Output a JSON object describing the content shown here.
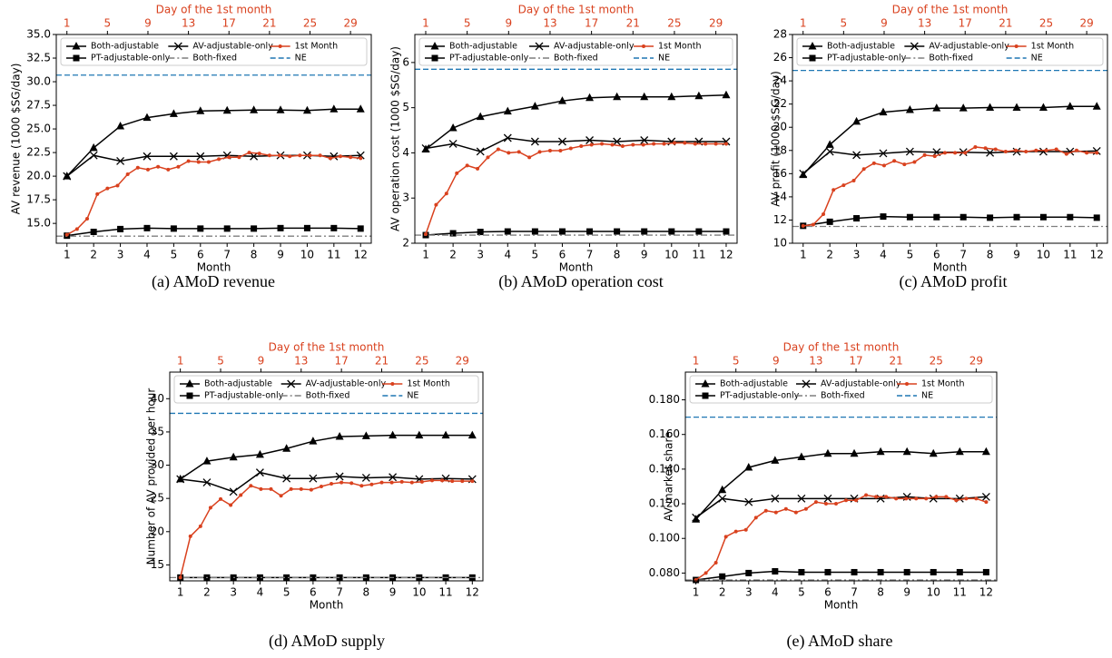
{
  "chart_data": [
    {
      "type": "line",
      "caption": "(a) AMoD revenue",
      "xlabel": "Month",
      "ylabel": "AV revenue (1000 $SG/day)",
      "x2label": "Day of the 1st month",
      "x2color": "#d9411e",
      "x": [
        1,
        2,
        3,
        4,
        5,
        6,
        7,
        8,
        9,
        10,
        11,
        12
      ],
      "xlim": [
        0.6,
        12.4
      ],
      "xticks": [
        1,
        2,
        3,
        4,
        5,
        6,
        7,
        8,
        9,
        10,
        11,
        12
      ],
      "x2lim": [
        -0.05,
        31.05
      ],
      "x2ticks": [
        1,
        5,
        9,
        13,
        17,
        21,
        25,
        29
      ],
      "ylim": [
        12.9,
        35
      ],
      "yticks": [
        {
          "value": 15,
          "label": "15.0"
        },
        {
          "value": 17.5,
          "label": "17.5"
        },
        {
          "value": 20,
          "label": "20.0"
        },
        {
          "value": 22.5,
          "label": "22.5"
        },
        {
          "value": 25,
          "label": "25.0"
        },
        {
          "value": 27.5,
          "label": "27.5"
        },
        {
          "value": 30,
          "label": "30.0"
        },
        {
          "value": 32.5,
          "label": "32.5"
        },
        {
          "value": 35,
          "label": "35.0"
        }
      ],
      "series": [
        {
          "name": "Both-adjustable",
          "color": "#000000",
          "marker": "triangle",
          "values": [
            20.0,
            23.0,
            25.3,
            26.2,
            26.6,
            26.9,
            26.95,
            27.0,
            27.0,
            26.95,
            27.1,
            27.1
          ]
        },
        {
          "name": "PT-adjustable-only",
          "color": "#000000",
          "marker": "square",
          "values": [
            13.7,
            14.1,
            14.4,
            14.5,
            14.45,
            14.45,
            14.45,
            14.45,
            14.5,
            14.5,
            14.5,
            14.45
          ]
        },
        {
          "name": "AV-adjustable-only",
          "color": "#000000",
          "marker": "x",
          "values": [
            20.0,
            22.2,
            21.6,
            22.1,
            22.1,
            22.1,
            22.2,
            22.1,
            22.2,
            22.2,
            22.1,
            22.2
          ]
        },
        {
          "name": "Both-fixed",
          "color": "#7f7f7f",
          "style": "dashdot",
          "value": 13.65
        },
        {
          "name": "1st Month",
          "color": "#d9411e",
          "marker": "dot",
          "axis": "x2",
          "x": [
            1,
            2,
            3,
            4,
            5,
            6,
            7,
            8,
            9,
            10,
            11,
            12,
            13,
            14,
            15,
            16,
            17,
            18,
            19,
            20,
            21,
            22,
            23,
            24,
            25,
            26,
            27,
            28,
            29,
            30
          ],
          "values": [
            13.8,
            14.4,
            15.5,
            18.1,
            18.7,
            19.0,
            20.2,
            20.9,
            20.7,
            21.0,
            20.7,
            21.0,
            21.6,
            21.5,
            21.5,
            21.8,
            22.0,
            22.0,
            22.5,
            22.4,
            22.2,
            22.2,
            22.1,
            22.2,
            22.2,
            22.2,
            21.9,
            22.1,
            22.0,
            21.9
          ]
        },
        {
          "name": "NE",
          "color": "#1f77b4",
          "style": "dashed",
          "value": 30.7
        }
      ]
    },
    {
      "type": "line",
      "caption": "(b) AMoD operation cost",
      "xlabel": "Month",
      "ylabel": "AV operation cost (1000 $SG/day)",
      "x2label": "Day of the 1st month",
      "x2color": "#d9411e",
      "x": [
        1,
        2,
        3,
        4,
        5,
        6,
        7,
        8,
        9,
        10,
        11,
        12
      ],
      "xlim": [
        0.6,
        12.4
      ],
      "xticks": [
        1,
        2,
        3,
        4,
        5,
        6,
        7,
        8,
        9,
        10,
        11,
        12
      ],
      "x2lim": [
        -0.05,
        31.05
      ],
      "x2ticks": [
        1,
        5,
        9,
        13,
        17,
        21,
        25,
        29
      ],
      "ylim": [
        2,
        6.62
      ],
      "yticks": [
        2,
        3,
        4,
        5,
        6
      ],
      "series": [
        {
          "name": "Both-adjustable",
          "color": "#000000",
          "marker": "triangle",
          "values": [
            4.08,
            4.55,
            4.8,
            4.92,
            5.03,
            5.15,
            5.22,
            5.24,
            5.24,
            5.24,
            5.26,
            5.28
          ]
        },
        {
          "name": "PT-adjustable-only",
          "color": "#000000",
          "marker": "square",
          "values": [
            2.18,
            2.22,
            2.25,
            2.26,
            2.26,
            2.26,
            2.26,
            2.26,
            2.26,
            2.26,
            2.26,
            2.26
          ]
        },
        {
          "name": "AV-adjustable-only",
          "color": "#000000",
          "marker": "x",
          "values": [
            4.1,
            4.2,
            4.03,
            4.33,
            4.25,
            4.25,
            4.28,
            4.25,
            4.28,
            4.25,
            4.25,
            4.25
          ]
        },
        {
          "name": "Both-fixed",
          "color": "#7f7f7f",
          "style": "dashdot",
          "value": 2.18
        },
        {
          "name": "1st Month",
          "color": "#d9411e",
          "marker": "dot",
          "axis": "x2",
          "x": [
            1,
            2,
            3,
            4,
            5,
            6,
            7,
            8,
            9,
            10,
            11,
            12,
            13,
            14,
            15,
            16,
            17,
            18,
            19,
            20,
            21,
            22,
            23,
            24,
            25,
            26,
            27,
            28,
            29,
            30
          ],
          "values": [
            2.2,
            2.85,
            3.1,
            3.55,
            3.72,
            3.65,
            3.9,
            4.08,
            4.0,
            4.02,
            3.9,
            4.02,
            4.05,
            4.05,
            4.1,
            4.15,
            4.18,
            4.2,
            4.18,
            4.15,
            4.18,
            4.18,
            4.2,
            4.2,
            4.22,
            4.22,
            4.2,
            4.2,
            4.2,
            4.2
          ]
        },
        {
          "name": "NE",
          "color": "#1f77b4",
          "style": "dashed",
          "value": 5.85
        }
      ]
    },
    {
      "type": "line",
      "caption": "(c) AMoD profit",
      "xlabel": "Month",
      "ylabel": "AV profit (1000 $SG/day)",
      "x2label": "Day of the 1st month",
      "x2color": "#d9411e",
      "x": [
        1,
        2,
        3,
        4,
        5,
        6,
        7,
        8,
        9,
        10,
        11,
        12
      ],
      "xlim": [
        0.6,
        12.4
      ],
      "xticks": [
        1,
        2,
        3,
        4,
        5,
        6,
        7,
        8,
        9,
        10,
        11,
        12
      ],
      "x2lim": [
        -0.05,
        31.05
      ],
      "x2ticks": [
        1,
        5,
        9,
        13,
        17,
        21,
        25,
        29
      ],
      "ylim": [
        10,
        28
      ],
      "yticks": [
        10,
        12,
        14,
        16,
        18,
        20,
        22,
        24,
        26,
        28
      ],
      "series": [
        {
          "name": "Both-adjustable",
          "color": "#000000",
          "marker": "triangle",
          "values": [
            15.9,
            18.5,
            20.5,
            21.3,
            21.5,
            21.65,
            21.65,
            21.7,
            21.7,
            21.7,
            21.8,
            21.8
          ]
        },
        {
          "name": "PT-adjustable-only",
          "color": "#000000",
          "marker": "square",
          "values": [
            11.5,
            11.85,
            12.15,
            12.3,
            12.25,
            12.25,
            12.25,
            12.2,
            12.25,
            12.25,
            12.25,
            12.2
          ]
        },
        {
          "name": "AV-adjustable-only",
          "color": "#000000",
          "marker": "x",
          "values": [
            16.0,
            17.9,
            17.6,
            17.75,
            17.9,
            17.85,
            17.85,
            17.8,
            17.9,
            17.9,
            17.9,
            17.95
          ]
        },
        {
          "name": "Both-fixed",
          "color": "#7f7f7f",
          "style": "dashdot",
          "value": 11.45
        },
        {
          "name": "1st Month",
          "color": "#d9411e",
          "marker": "dot",
          "axis": "x2",
          "x": [
            1,
            2,
            3,
            4,
            5,
            6,
            7,
            8,
            9,
            10,
            11,
            12,
            13,
            14,
            15,
            16,
            17,
            18,
            19,
            20,
            21,
            22,
            23,
            24,
            25,
            26,
            27,
            28,
            29,
            30
          ],
          "values": [
            11.5,
            11.6,
            12.5,
            14.6,
            15.0,
            15.4,
            16.4,
            16.9,
            16.7,
            17.1,
            16.8,
            17.0,
            17.6,
            17.5,
            17.8,
            17.8,
            17.8,
            18.3,
            18.2,
            18.1,
            17.9,
            18.0,
            17.9,
            18.0,
            18.0,
            18.1,
            17.7,
            18.0,
            17.8,
            17.8
          ]
        },
        {
          "name": "NE",
          "color": "#1f77b4",
          "style": "dashed",
          "value": 24.9
        }
      ]
    },
    {
      "type": "line",
      "caption": "(d) AMoD supply",
      "xlabel": "Month",
      "ylabel": "Number of AV provided per hour",
      "x2label": "Day of the 1st month",
      "x2color": "#d9411e",
      "x": [
        1,
        2,
        3,
        4,
        5,
        6,
        7,
        8,
        9,
        10,
        11,
        12
      ],
      "xlim": [
        0.6,
        12.4
      ],
      "xticks": [
        1,
        2,
        3,
        4,
        5,
        6,
        7,
        8,
        9,
        10,
        11,
        12
      ],
      "x2lim": [
        -0.05,
        31.05
      ],
      "x2ticks": [
        1,
        5,
        9,
        13,
        17,
        21,
        25,
        29
      ],
      "ylim": [
        12.6,
        44
      ],
      "yticks": [
        15,
        20,
        25,
        30,
        35,
        40
      ],
      "series": [
        {
          "name": "Both-adjustable",
          "color": "#000000",
          "marker": "triangle",
          "values": [
            27.9,
            30.6,
            31.2,
            31.6,
            32.5,
            33.6,
            34.3,
            34.4,
            34.5,
            34.5,
            34.5,
            34.5
          ]
        },
        {
          "name": "PT-adjustable-only",
          "color": "#000000",
          "marker": "square",
          "values": [
            13.1,
            13.1,
            13.1,
            13.1,
            13.1,
            13.1,
            13.1,
            13.1,
            13.1,
            13.1,
            13.1,
            13.1
          ]
        },
        {
          "name": "AV-adjustable-only",
          "color": "#000000",
          "marker": "x",
          "values": [
            27.9,
            27.4,
            26.0,
            28.9,
            28.0,
            28.0,
            28.3,
            28.1,
            28.2,
            27.9,
            28.0,
            27.9
          ]
        },
        {
          "name": "Both-fixed",
          "color": "#7f7f7f",
          "style": "dashdot",
          "value": 13.1
        },
        {
          "name": "1st Month",
          "color": "#d9411e",
          "marker": "dot",
          "axis": "x2",
          "x": [
            1,
            2,
            3,
            4,
            5,
            6,
            7,
            8,
            9,
            10,
            11,
            12,
            13,
            14,
            15,
            16,
            17,
            18,
            19,
            20,
            21,
            22,
            23,
            24,
            25,
            26,
            27,
            28,
            29,
            30
          ],
          "values": [
            13.1,
            19.3,
            20.8,
            23.6,
            24.9,
            24.0,
            25.5,
            26.9,
            26.4,
            26.4,
            25.4,
            26.4,
            26.4,
            26.3,
            26.8,
            27.2,
            27.4,
            27.3,
            26.9,
            27.1,
            27.4,
            27.4,
            27.5,
            27.4,
            27.5,
            27.7,
            27.7,
            27.6,
            27.6,
            27.6
          ]
        },
        {
          "name": "NE",
          "color": "#1f77b4",
          "style": "dashed",
          "value": 37.8
        }
      ]
    },
    {
      "type": "line",
      "caption": "(e) AMoD share",
      "xlabel": "Month",
      "ylabel": "AV market share",
      "x2label": "Day of the 1st month",
      "x2color": "#d9411e",
      "x": [
        1,
        2,
        3,
        4,
        5,
        6,
        7,
        8,
        9,
        10,
        11,
        12
      ],
      "xlim": [
        0.6,
        12.4
      ],
      "xticks": [
        1,
        2,
        3,
        4,
        5,
        6,
        7,
        8,
        9,
        10,
        11,
        12
      ],
      "x2lim": [
        -0.05,
        31.05
      ],
      "x2ticks": [
        1,
        5,
        9,
        13,
        17,
        21,
        25,
        29
      ],
      "ylim": [
        0.0755,
        0.196
      ],
      "yticks": [
        {
          "value": 0.08,
          "label": "0.080"
        },
        {
          "value": 0.1,
          "label": "0.100"
        },
        {
          "value": 0.12,
          "label": "0.120"
        },
        {
          "value": 0.14,
          "label": "0.140"
        },
        {
          "value": 0.16,
          "label": "0.160"
        },
        {
          "value": 0.18,
          "label": "0.180"
        }
      ],
      "series": [
        {
          "name": "Both-adjustable",
          "color": "#000000",
          "marker": "triangle",
          "values": [
            0.111,
            0.128,
            0.141,
            0.145,
            0.147,
            0.149,
            0.149,
            0.15,
            0.15,
            0.149,
            0.15,
            0.15
          ]
        },
        {
          "name": "PT-adjustable-only",
          "color": "#000000",
          "marker": "square",
          "values": [
            0.076,
            0.078,
            0.08,
            0.081,
            0.0805,
            0.0805,
            0.0805,
            0.0805,
            0.0805,
            0.0805,
            0.0805,
            0.0805
          ]
        },
        {
          "name": "AV-adjustable-only",
          "color": "#000000",
          "marker": "x",
          "values": [
            0.112,
            0.123,
            0.121,
            0.123,
            0.123,
            0.123,
            0.123,
            0.123,
            0.124,
            0.123,
            0.123,
            0.124
          ]
        },
        {
          "name": "Both-fixed",
          "color": "#7f7f7f",
          "style": "dashdot",
          "value": 0.076
        },
        {
          "name": "1st Month",
          "color": "#d9411e",
          "marker": "dot",
          "axis": "x2",
          "x": [
            1,
            2,
            3,
            4,
            5,
            6,
            7,
            8,
            9,
            10,
            11,
            12,
            13,
            14,
            15,
            16,
            17,
            18,
            19,
            20,
            21,
            22,
            23,
            24,
            25,
            26,
            27,
            28,
            29,
            30
          ],
          "values": [
            0.076,
            0.08,
            0.086,
            0.101,
            0.104,
            0.105,
            0.112,
            0.116,
            0.115,
            0.117,
            0.115,
            0.117,
            0.121,
            0.12,
            0.12,
            0.122,
            0.122,
            0.125,
            0.124,
            0.124,
            0.123,
            0.123,
            0.123,
            0.123,
            0.124,
            0.124,
            0.122,
            0.123,
            0.123,
            0.121
          ]
        },
        {
          "name": "NE",
          "color": "#1f77b4",
          "style": "dashed",
          "value": 0.17
        }
      ]
    }
  ]
}
